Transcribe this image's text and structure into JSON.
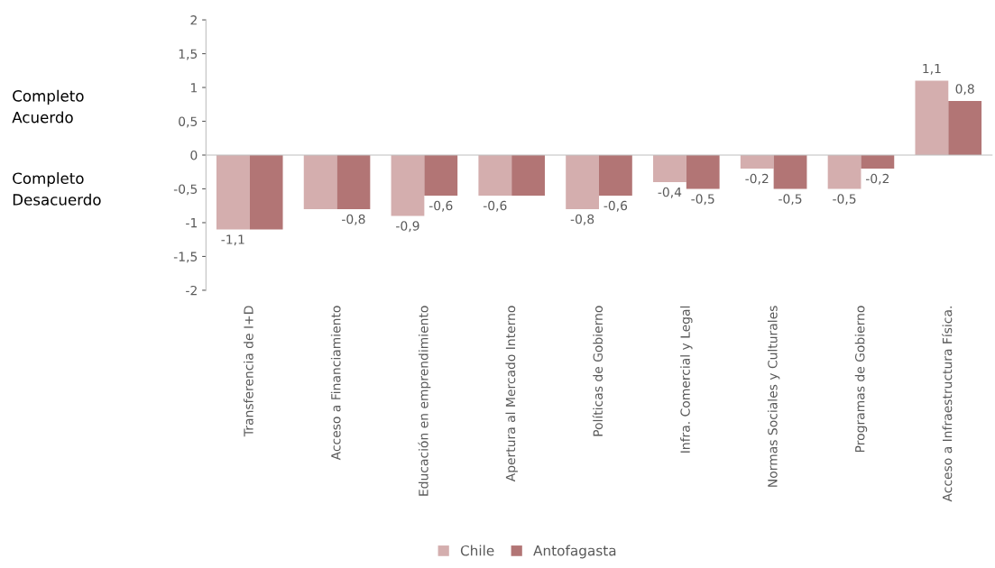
{
  "chart_data": {
    "type": "bar",
    "categories": [
      "Transferencia de I+D",
      "Acceso a Financiamiento",
      "Educación en emprendimiento",
      "Apertura al Mercado Interno",
      "Políticas de Gobierno",
      "Infra. Comercial y Legal",
      "Normas Sociales y Culturales",
      "Programas de Gobierno",
      "Acceso a Infraestructura Física."
    ],
    "series": [
      {
        "name": "Chile",
        "color": "#d4aeae",
        "values": [
          -1.1,
          -0.8,
          -0.9,
          -0.6,
          -0.8,
          -0.4,
          -0.2,
          -0.5,
          1.1
        ],
        "value_labels": [
          "-1,1",
          null,
          "-0,9",
          "-0,6",
          "-0,8",
          "-0,4",
          "-0,2",
          "-0,5",
          "1,1"
        ]
      },
      {
        "name": "Antofagasta",
        "color": "#b27575",
        "values": [
          -1.1,
          -0.8,
          -0.6,
          -0.6,
          -0.6,
          -0.5,
          -0.5,
          -0.2,
          0.8
        ],
        "value_labels": [
          null,
          "-0,8",
          "-0,6",
          null,
          "-0,6",
          "-0,5",
          "-0,5",
          "-0,2",
          "0,8"
        ]
      }
    ],
    "ylim": [
      -2,
      2
    ],
    "yticks": [
      {
        "value": -2,
        "label": "-2"
      },
      {
        "value": -1.5,
        "label": "-1,5"
      },
      {
        "value": -1,
        "label": "-1"
      },
      {
        "value": -0.5,
        "label": "-0,5"
      },
      0,
      {
        "value": 0.5,
        "label": "0,5"
      },
      1,
      {
        "value": 1.5,
        "label": "1,5"
      },
      2
    ],
    "annotations": [
      "Completo\nAcuerdo",
      "Completo\nDesacuerdo"
    ],
    "legend": "bottom"
  }
}
